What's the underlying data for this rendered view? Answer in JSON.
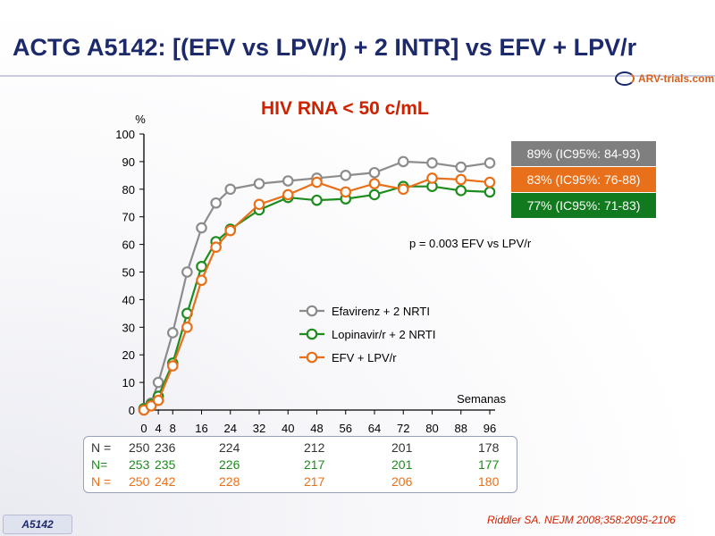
{
  "title": "ACTG A5142: [(EFV vs LPV/r) + 2 INTR] vs EFV + LPV/r",
  "logo": "ARV-trials.com",
  "subtitle": "HIV RNA < 50 c/mL",
  "chart_data": {
    "type": "line",
    "ylabel": "%",
    "xlabel": "Semanas",
    "ylim": [
      0,
      100
    ],
    "xlim": [
      0,
      96
    ],
    "yticks": [
      0,
      10,
      20,
      30,
      40,
      50,
      60,
      70,
      80,
      90,
      100
    ],
    "xticks": [
      0,
      4,
      8,
      16,
      24,
      32,
      40,
      48,
      56,
      64,
      72,
      80,
      88,
      96
    ],
    "series": [
      {
        "name": "Efavirenz + 2 NRTI",
        "color": "#8c8c8c",
        "x": [
          0,
          2,
          4,
          8,
          12,
          16,
          20,
          24,
          32,
          40,
          48,
          56,
          64,
          72,
          80,
          88,
          96
        ],
        "y": [
          0.5,
          2.5,
          10,
          28,
          50,
          66,
          75,
          80,
          82,
          83,
          84,
          85,
          86,
          90,
          89.5,
          88,
          89.5
        ]
      },
      {
        "name": "Lopinavir/r + 2 NRTI",
        "color": "#1e8c1e",
        "x": [
          0,
          2,
          4,
          8,
          12,
          16,
          20,
          24,
          32,
          40,
          48,
          56,
          64,
          72,
          80,
          88,
          96
        ],
        "y": [
          0.5,
          2,
          5,
          17,
          35,
          52,
          61,
          65.5,
          72.5,
          77,
          76,
          76.5,
          78,
          81,
          81,
          79.5,
          79
        ]
      },
      {
        "name": "EFV + LPV/r",
        "color": "#e8701a",
        "x": [
          0,
          2,
          4,
          8,
          12,
          16,
          20,
          24,
          32,
          40,
          48,
          56,
          64,
          72,
          80,
          88,
          96
        ],
        "y": [
          0,
          1.5,
          3.5,
          16,
          30,
          47,
          59,
          65,
          74.5,
          78,
          82.5,
          79,
          82,
          80,
          84,
          83.5,
          82.5
        ]
      }
    ],
    "annotation": "p = 0.003 EFV vs LPV/r",
    "ci_boxes": [
      {
        "label": "89% (IC95%: 84-93)",
        "color": "#7f7f7f"
      },
      {
        "label": "83% (IC95%: 76-88)",
        "color": "#e8701a"
      },
      {
        "label": "77% (IC95%: 71-83)",
        "color": "#127a1e"
      }
    ]
  },
  "n_table": {
    "rows": [
      {
        "label": "N =",
        "color": "#333333",
        "values": [
          "250",
          "236",
          "224",
          "212",
          "201",
          "178"
        ]
      },
      {
        "label": "N=",
        "color": "#1e8c1e",
        "values": [
          "253",
          "235",
          "226",
          "217",
          "201",
          "177"
        ]
      },
      {
        "label": "N =",
        "color": "#e8701a",
        "values": [
          "250",
          "242",
          "228",
          "217",
          "206",
          "180"
        ]
      }
    ]
  },
  "footer_tag": "A5142",
  "citation": "Riddler SA. NEJM 2008;358:2095-2106"
}
